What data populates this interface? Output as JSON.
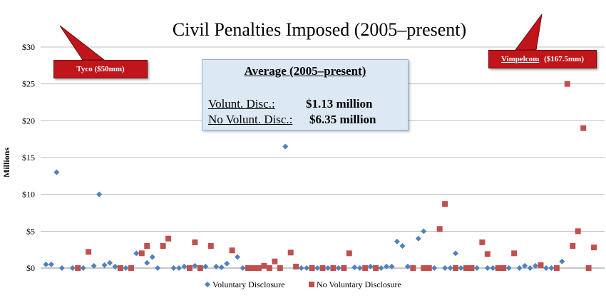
{
  "chart_data": {
    "type": "scatter",
    "title": "Civil Penalties Imposed (2005–present)",
    "ylabel": "Millions",
    "xlabel": "",
    "ylim": [
      0,
      30
    ],
    "yticks": [
      "$0",
      "$5",
      "$10",
      "$15",
      "$20",
      "$25",
      "$30"
    ],
    "ytick_values": [
      0,
      5,
      10,
      15,
      20,
      25,
      30
    ],
    "grid": true,
    "legend_position": "bottom",
    "series": [
      {
        "name": "Voluntary Disclosure",
        "marker": "diamond",
        "color": "#4f81bd",
        "values": [
          {
            "x": 1,
            "y": 0.5
          },
          {
            "x": 2,
            "y": 0.5
          },
          {
            "x": 3,
            "y": 13
          },
          {
            "x": 4,
            "y": 0
          },
          {
            "x": 6,
            "y": 0
          },
          {
            "x": 8,
            "y": 0
          },
          {
            "x": 10,
            "y": 0.3
          },
          {
            "x": 11,
            "y": 10
          },
          {
            "x": 12,
            "y": 0.4
          },
          {
            "x": 13,
            "y": 0.7
          },
          {
            "x": 14,
            "y": 0.2
          },
          {
            "x": 16,
            "y": 0
          },
          {
            "x": 18,
            "y": 2
          },
          {
            "x": 20,
            "y": 0.7
          },
          {
            "x": 21,
            "y": 1.5
          },
          {
            "x": 22,
            "y": 0
          },
          {
            "x": 25,
            "y": 0
          },
          {
            "x": 26,
            "y": 0
          },
          {
            "x": 27,
            "y": 0.2
          },
          {
            "x": 29,
            "y": 0.3
          },
          {
            "x": 31,
            "y": 0.2
          },
          {
            "x": 33,
            "y": 0.2
          },
          {
            "x": 34,
            "y": 0.1
          },
          {
            "x": 35,
            "y": 0.6
          },
          {
            "x": 37,
            "y": 1.5
          },
          {
            "x": 38,
            "y": 0
          },
          {
            "x": 46,
            "y": 16.5
          },
          {
            "x": 49,
            "y": 0
          },
          {
            "x": 50,
            "y": 0
          },
          {
            "x": 52,
            "y": 0
          },
          {
            "x": 54,
            "y": 0
          },
          {
            "x": 56,
            "y": 0
          },
          {
            "x": 59,
            "y": 0.1
          },
          {
            "x": 60,
            "y": 0
          },
          {
            "x": 62,
            "y": 0.2
          },
          {
            "x": 64,
            "y": 0
          },
          {
            "x": 65,
            "y": 0.2
          },
          {
            "x": 66,
            "y": 0.2
          },
          {
            "x": 67,
            "y": 3.6
          },
          {
            "x": 68,
            "y": 3
          },
          {
            "x": 69,
            "y": 0.2
          },
          {
            "x": 71,
            "y": 4
          },
          {
            "x": 72,
            "y": 5
          },
          {
            "x": 74,
            "y": 0
          },
          {
            "x": 76,
            "y": 0
          },
          {
            "x": 77,
            "y": 0
          },
          {
            "x": 78,
            "y": 2
          },
          {
            "x": 79,
            "y": 0
          },
          {
            "x": 82,
            "y": 0
          },
          {
            "x": 84,
            "y": 0
          },
          {
            "x": 85,
            "y": 0
          },
          {
            "x": 87,
            "y": 0
          },
          {
            "x": 88,
            "y": 0
          },
          {
            "x": 90,
            "y": 0
          },
          {
            "x": 91,
            "y": 0.3
          },
          {
            "x": 92,
            "y": 0
          },
          {
            "x": 93,
            "y": 0.3
          },
          {
            "x": 95,
            "y": 0
          },
          {
            "x": 96,
            "y": 0
          },
          {
            "x": 98,
            "y": 0.9
          }
        ]
      },
      {
        "name": "No Voluntary Disclosure",
        "marker": "square",
        "color": "#c0504d",
        "values": [
          {
            "x": 7,
            "y": 0
          },
          {
            "x": 9,
            "y": 2.2
          },
          {
            "x": 15,
            "y": 0
          },
          {
            "x": 17,
            "y": 0
          },
          {
            "x": 19,
            "y": 2
          },
          {
            "x": 20,
            "y": 3
          },
          {
            "x": 23,
            "y": 3
          },
          {
            "x": 24,
            "y": 4
          },
          {
            "x": 28,
            "y": 0
          },
          {
            "x": 29,
            "y": 3.5
          },
          {
            "x": 30,
            "y": 0
          },
          {
            "x": 32,
            "y": 3
          },
          {
            "x": 36,
            "y": 2.4
          },
          {
            "x": 39,
            "y": 0
          },
          {
            "x": 40,
            "y": 0
          },
          {
            "x": 41,
            "y": 0
          },
          {
            "x": 42,
            "y": 0.3
          },
          {
            "x": 43,
            "y": 0
          },
          {
            "x": 44,
            "y": 0.9
          },
          {
            "x": 45,
            "y": 0
          },
          {
            "x": 47,
            "y": 2.1
          },
          {
            "x": 48,
            "y": 0.2
          },
          {
            "x": 51,
            "y": 0
          },
          {
            "x": 53,
            "y": 0
          },
          {
            "x": 55,
            "y": 0
          },
          {
            "x": 57,
            "y": 0
          },
          {
            "x": 58,
            "y": 2
          },
          {
            "x": 61,
            "y": 0
          },
          {
            "x": 63,
            "y": 0
          },
          {
            "x": 70,
            "y": 0
          },
          {
            "x": 72,
            "y": 0
          },
          {
            "x": 73,
            "y": 0
          },
          {
            "x": 75,
            "y": 5.3
          },
          {
            "x": 76,
            "y": 8.7
          },
          {
            "x": 78,
            "y": 0
          },
          {
            "x": 80,
            "y": 0
          },
          {
            "x": 81,
            "y": 0
          },
          {
            "x": 83,
            "y": 3.5
          },
          {
            "x": 84,
            "y": 1.9
          },
          {
            "x": 86,
            "y": 0
          },
          {
            "x": 87,
            "y": 0
          },
          {
            "x": 89,
            "y": 2
          },
          {
            "x": 94,
            "y": 0.4
          },
          {
            "x": 97,
            "y": 0
          },
          {
            "x": 99,
            "y": 25
          },
          {
            "x": 100,
            "y": 3
          },
          {
            "x": 101,
            "y": 5
          },
          {
            "x": 102,
            "y": 19
          },
          {
            "x": 103,
            "y": 0
          },
          {
            "x": 104,
            "y": 2.8
          }
        ]
      }
    ],
    "annotations": [
      {
        "text": "Tyco ($50mm)",
        "side": "left"
      },
      {
        "text_name": "Vimpelcom",
        "text_value": "($167.5mm)",
        "side": "right"
      }
    ]
  },
  "average_box": {
    "title": "Average (2005–present)",
    "rows": [
      {
        "label": "Volunt. Disc.:",
        "value": "$1.13 million"
      },
      {
        "label": "No Volunt. Disc.:",
        "value": "$6.35 million"
      }
    ]
  },
  "colors": {
    "callout": "#c0161b",
    "box_fill": "#dce9f5",
    "box_border": "#8fb2d6",
    "grid": "#bfbfbf"
  }
}
